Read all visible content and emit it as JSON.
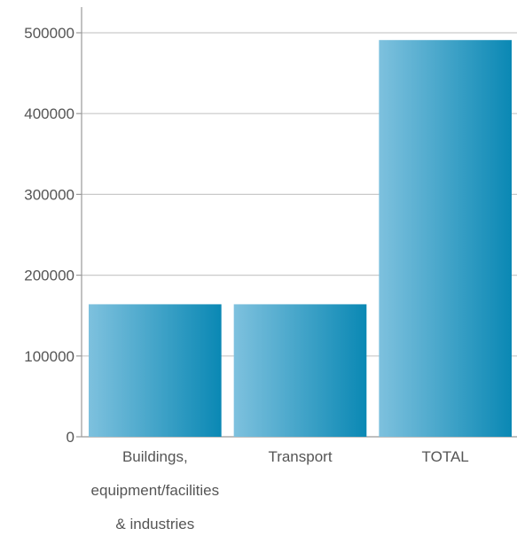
{
  "chart_data": {
    "type": "bar",
    "categories": [
      [
        "Buildings,",
        "equipment/facilities",
        "& industries"
      ],
      [
        "Transport"
      ],
      [
        "TOTAL"
      ]
    ],
    "values": [
      164000,
      164000,
      491000
    ],
    "ylim": [
      0,
      500000
    ],
    "yticks": [
      "0",
      "100000",
      "200000",
      "300000",
      "400000",
      "500000"
    ],
    "grid": true,
    "colors": {
      "bar_light": "#7ec1de",
      "bar_dark": "#0a88b4",
      "grid": "#c9c9c9",
      "axis": "#999999"
    }
  }
}
